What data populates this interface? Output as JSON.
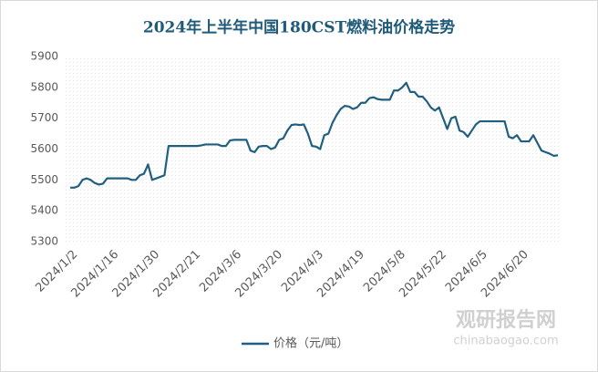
{
  "chart_data": {
    "type": "line",
    "title": "2024年上半年中国180CST燃料油价格走势",
    "categories": [
      "2024/1/2",
      null,
      null,
      null,
      null,
      null,
      null,
      null,
      null,
      null,
      "2024/1/16",
      null,
      null,
      null,
      null,
      null,
      null,
      null,
      null,
      null,
      "2024/1/30",
      null,
      null,
      null,
      null,
      null,
      null,
      null,
      null,
      null,
      "2024/2/21",
      null,
      null,
      null,
      null,
      null,
      null,
      null,
      null,
      null,
      "2024/3/6",
      null,
      null,
      null,
      null,
      null,
      null,
      null,
      null,
      null,
      "2024/3/20",
      null,
      null,
      null,
      null,
      null,
      null,
      null,
      null,
      null,
      "2024/4/3",
      null,
      null,
      null,
      null,
      null,
      null,
      null,
      null,
      null,
      "2024/4/19",
      null,
      null,
      null,
      null,
      null,
      null,
      null,
      null,
      null,
      "2024/5/8",
      null,
      null,
      null,
      null,
      null,
      null,
      null,
      null,
      null,
      "2024/5/22",
      null,
      null,
      null,
      null,
      null,
      null,
      null,
      null,
      null,
      "2024/6/5",
      null,
      null,
      null,
      null,
      null,
      null,
      null,
      null,
      null,
      "2024/6/20",
      null,
      null,
      null,
      null,
      null,
      null,
      null,
      null,
      null
    ],
    "series": [
      {
        "name": "价格（元/吨）",
        "color": "#1f5f80",
        "values": [
          5475,
          5475,
          5480,
          5500,
          5505,
          5500,
          5490,
          5485,
          5488,
          5505,
          5505,
          5505,
          5505,
          5505,
          5505,
          5500,
          5500,
          5515,
          5520,
          5550,
          5500,
          5505,
          5510,
          5515,
          5610,
          5610,
          5610,
          5610,
          5610,
          5610,
          5610,
          5610,
          5612,
          5615,
          5615,
          5615,
          5615,
          5610,
          5610,
          5628,
          5630,
          5630,
          5630,
          5630,
          5595,
          5590,
          5608,
          5610,
          5610,
          5600,
          5605,
          5630,
          5635,
          5660,
          5678,
          5680,
          5678,
          5680,
          5650,
          5610,
          5608,
          5600,
          5645,
          5650,
          5685,
          5710,
          5730,
          5740,
          5738,
          5730,
          5735,
          5750,
          5750,
          5765,
          5768,
          5762,
          5760,
          5760,
          5760,
          5790,
          5790,
          5800,
          5815,
          5785,
          5785,
          5770,
          5770,
          5755,
          5735,
          5725,
          5735,
          5700,
          5665,
          5700,
          5705,
          5660,
          5655,
          5640,
          5660,
          5680,
          5690,
          5690,
          5690,
          5690,
          5690,
          5690,
          5690,
          5640,
          5635,
          5645,
          5625,
          5625,
          5625,
          5645,
          5620,
          5595,
          5590,
          5585,
          5578,
          5580
        ]
      }
    ],
    "ylim": [
      5300,
      5900
    ],
    "yticks": [
      5300,
      5400,
      5500,
      5600,
      5700,
      5800,
      5900
    ],
    "grid": false,
    "legend": "bottom",
    "watermark": {
      "name": "观研报告网",
      "url": "chinabaogao.com"
    }
  }
}
